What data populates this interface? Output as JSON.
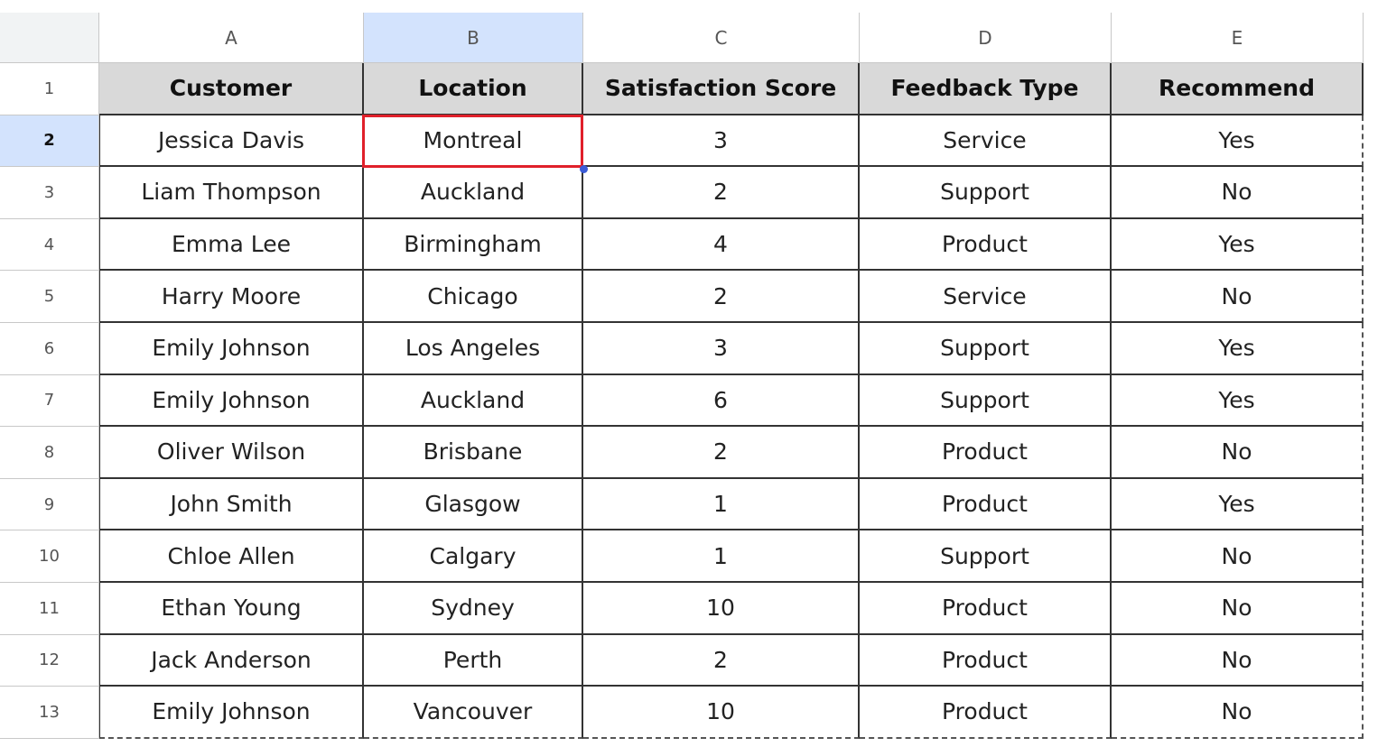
{
  "column_letters": [
    "A",
    "B",
    "C",
    "D",
    "E"
  ],
  "row_numbers": [
    1,
    2,
    3,
    4,
    5,
    6,
    7,
    8,
    9,
    10,
    11,
    12,
    13
  ],
  "table": {
    "header": [
      "Customer",
      "Location",
      "Satisfaction Score",
      "Feedback Type",
      "Recommend"
    ],
    "rows": [
      [
        "Jessica Davis",
        "Montreal",
        3,
        "Service",
        "Yes"
      ],
      [
        "Liam Thompson",
        "Auckland",
        2,
        "Support",
        "No"
      ],
      [
        "Emma Lee",
        "Birmingham",
        4,
        "Product",
        "Yes"
      ],
      [
        "Harry Moore",
        "Chicago",
        2,
        "Service",
        "No"
      ],
      [
        "Emily Johnson",
        "Los Angeles",
        3,
        "Support",
        "Yes"
      ],
      [
        "Emily Johnson",
        "Auckland",
        6,
        "Support",
        "Yes"
      ],
      [
        "Oliver Wilson",
        "Brisbane",
        2,
        "Product",
        "No"
      ],
      [
        "John Smith",
        "Glasgow",
        1,
        "Product",
        "Yes"
      ],
      [
        "Chloe Allen",
        "Calgary",
        1,
        "Support",
        "No"
      ],
      [
        "Ethan Young",
        "Sydney",
        10,
        "Product",
        "No"
      ],
      [
        "Jack Anderson",
        "Perth",
        2,
        "Product",
        "No"
      ],
      [
        "Emily Johnson",
        "Vancouver",
        10,
        "Product",
        "No"
      ]
    ]
  }
}
